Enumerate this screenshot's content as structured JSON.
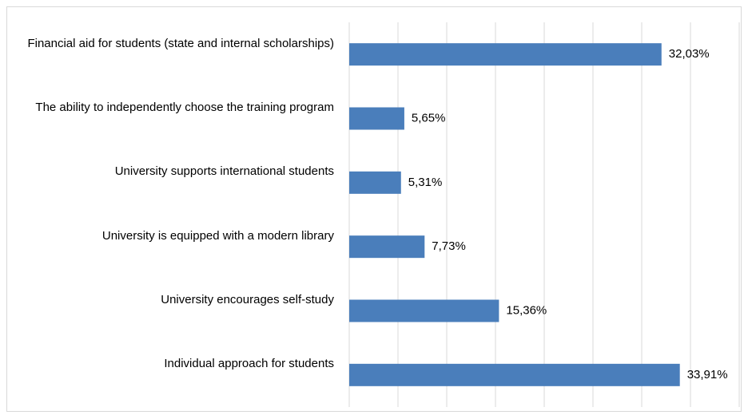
{
  "chart_data": {
    "type": "bar",
    "orientation": "horizontal",
    "categories": [
      "Financial aid for students (state and internal scholarships)",
      "The ability to independently choose the training program",
      "University supports international students",
      "University is equipped with a modern library",
      "University encourages self-study",
      "Individual approach for students"
    ],
    "values": [
      32.03,
      5.65,
      5.31,
      7.73,
      15.36,
      33.91
    ],
    "value_labels": [
      "32,03%",
      "5,65%",
      "5,31%",
      "7,73%",
      "15,36%",
      "33,91%"
    ],
    "color": "#4a7ebb",
    "xlim": [
      0,
      40
    ],
    "xticks": [
      0,
      5,
      10,
      15,
      20,
      25,
      30,
      35,
      40
    ],
    "grid": true
  }
}
